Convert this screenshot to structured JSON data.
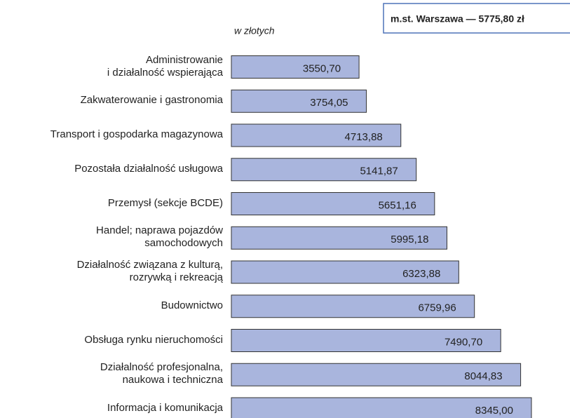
{
  "chart_data": {
    "type": "bar",
    "orientation": "horizontal",
    "subtitle": "w złotych",
    "annotation": "m.st. Warszawa — 5775,80 zł",
    "categories": [
      "Administrowanie\ni działalność wspierająca",
      "Zakwaterowanie i gastronomia",
      "Transport i gospodarka magazynowa",
      "Pozostała działalność usługowa",
      "Przemysł (sekcje BCDE)",
      "Handel; naprawa pojazdów\nsamochodowych",
      "Działalność związana z kulturą,\nrozrywką i rekreacją",
      "Budownictwo",
      "Obsługa rynku nieruchomości",
      "Działalność profesjonalna,\nnaukowa i techniczna",
      "Informacja i komunikacja"
    ],
    "values": [
      3550.7,
      3754.05,
      4713.88,
      5141.87,
      5651.16,
      5995.18,
      6323.88,
      6759.96,
      7490.7,
      8044.83,
      8345.0
    ],
    "value_labels": [
      "3550,70",
      "3754,05",
      "4713,88",
      "5141,87",
      "5651,16",
      "5995,18",
      "6323,88",
      "6759,96",
      "7490,70",
      "8044,83",
      "8345,00"
    ],
    "color": "#a9b5dd"
  }
}
